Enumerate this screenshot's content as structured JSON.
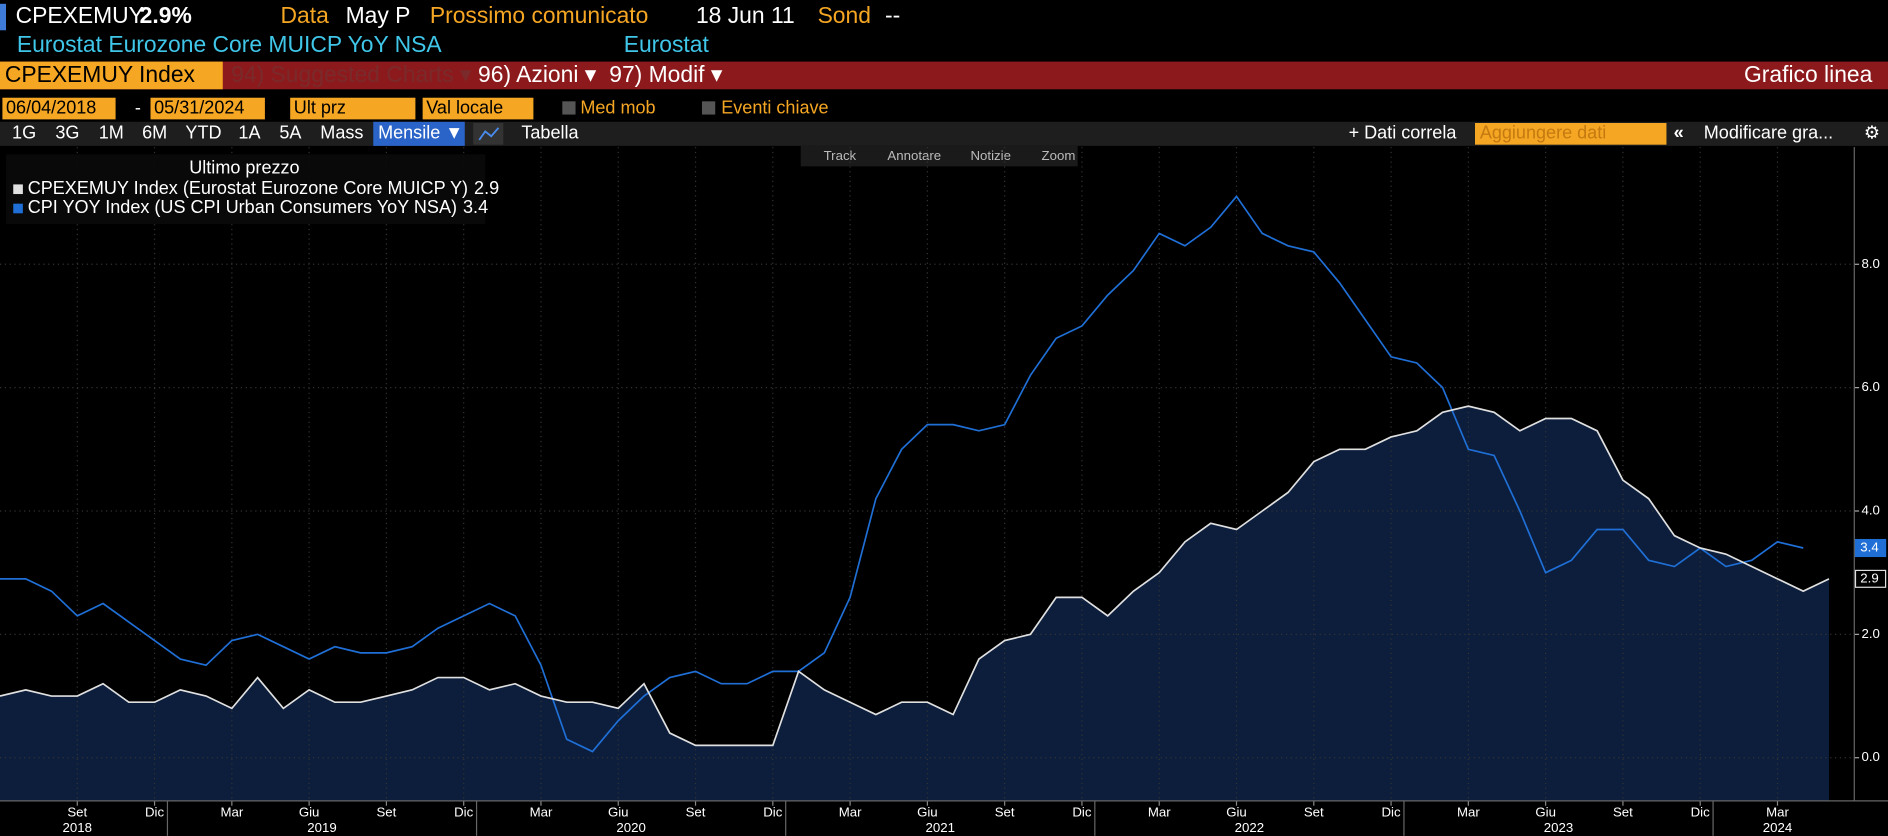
{
  "ui": {
    "header": {
      "ticker": "CPEXEMUY",
      "value": "2.9%",
      "data_label": "Data",
      "data_value": "May P",
      "next_label": "Prossimo comunicato",
      "next_value": "18 Jun 11",
      "survey_label": "Sond",
      "survey_value": "--",
      "description": "Eurostat Eurozone Core MUICP YoY NSA",
      "source": "Eurostat"
    },
    "menu": {
      "security": "CPEXEMUY Index",
      "items": [
        "94) Suggested Charts ▾",
        "96) Azioni ▾",
        "97) Modif ▾"
      ],
      "chart_type": "Grafico linea"
    },
    "controls": {
      "start": "06/04/2018",
      "separator": "-",
      "end": "05/31/2024",
      "field": "Ult prz",
      "currency": "Val locale",
      "moving_avg": "Med mob",
      "events": "Eventi chiave"
    },
    "periods": [
      "1G",
      "3G",
      "1M",
      "6M",
      "YTD",
      "1A",
      "5A",
      "Mass"
    ],
    "frequency": "Mensile ▼",
    "table": "Tabella",
    "related": "+ Dati correla",
    "add_data": "Aggiungere dati",
    "modify": "Modificare gra...",
    "tools": [
      "Track",
      "Annotare",
      "Notizie",
      "Zoom"
    ]
  },
  "chart_data": {
    "type": "line",
    "legend_title": "Ultimo prezzo",
    "grid": true,
    "x": [
      "2018-06",
      "2018-07",
      "2018-08",
      "2018-09",
      "2018-10",
      "2018-11",
      "2018-12",
      "2019-01",
      "2019-02",
      "2019-03",
      "2019-04",
      "2019-05",
      "2019-06",
      "2019-07",
      "2019-08",
      "2019-09",
      "2019-10",
      "2019-11",
      "2019-12",
      "2020-01",
      "2020-02",
      "2020-03",
      "2020-04",
      "2020-05",
      "2020-06",
      "2020-07",
      "2020-08",
      "2020-09",
      "2020-10",
      "2020-11",
      "2020-12",
      "2021-01",
      "2021-02",
      "2021-03",
      "2021-04",
      "2021-05",
      "2021-06",
      "2021-07",
      "2021-08",
      "2021-09",
      "2021-10",
      "2021-11",
      "2021-12",
      "2022-01",
      "2022-02",
      "2022-03",
      "2022-04",
      "2022-05",
      "2022-06",
      "2022-07",
      "2022-08",
      "2022-09",
      "2022-10",
      "2022-11",
      "2022-12",
      "2023-01",
      "2023-02",
      "2023-03",
      "2023-04",
      "2023-05",
      "2023-06",
      "2023-07",
      "2023-08",
      "2023-09",
      "2023-10",
      "2023-11",
      "2023-12",
      "2024-01",
      "2024-02",
      "2024-03",
      "2024-04",
      "2024-05"
    ],
    "series": [
      {
        "name": "CPEXEMUY Index (Eurostat Eurozone Core MUICP Y)",
        "color": "#e0e0e0",
        "fill": "#0c1e3c",
        "values": [
          1.0,
          1.1,
          1.0,
          1.0,
          1.2,
          0.9,
          0.9,
          1.1,
          1.0,
          0.8,
          1.3,
          0.8,
          1.1,
          0.9,
          0.9,
          1.0,
          1.1,
          1.3,
          1.3,
          1.1,
          1.2,
          1.0,
          0.9,
          0.9,
          0.8,
          1.2,
          0.4,
          0.2,
          0.2,
          0.2,
          0.2,
          1.4,
          1.1,
          0.9,
          0.7,
          0.9,
          0.9,
          0.7,
          1.6,
          1.9,
          2.0,
          2.6,
          2.6,
          2.3,
          2.7,
          3.0,
          3.5,
          3.8,
          3.7,
          4.0,
          4.3,
          4.8,
          5.0,
          5.0,
          5.2,
          5.3,
          5.6,
          5.7,
          5.6,
          5.3,
          5.5,
          5.5,
          5.3,
          4.5,
          4.2,
          3.6,
          3.4,
          3.3,
          3.1,
          2.9,
          2.7,
          2.9
        ]
      },
      {
        "name": "CPI YOY Index (US CPI Urban Consumers YoY NSA)",
        "color": "#1f6fd6",
        "values": [
          2.9,
          2.9,
          2.7,
          2.3,
          2.5,
          2.2,
          1.9,
          1.6,
          1.5,
          1.9,
          2.0,
          1.8,
          1.6,
          1.8,
          1.7,
          1.7,
          1.8,
          2.1,
          2.3,
          2.5,
          2.3,
          1.5,
          0.3,
          0.1,
          0.6,
          1.0,
          1.3,
          1.4,
          1.2,
          1.2,
          1.4,
          1.4,
          1.7,
          2.6,
          4.2,
          5.0,
          5.4,
          5.4,
          5.3,
          5.4,
          6.2,
          6.8,
          7.0,
          7.5,
          7.9,
          8.5,
          8.3,
          8.6,
          9.1,
          8.5,
          8.3,
          8.2,
          7.7,
          7.1,
          6.5,
          6.4,
          6.0,
          5.0,
          4.9,
          4.0,
          3.0,
          3.2,
          3.7,
          3.7,
          3.2,
          3.1,
          3.4,
          3.1,
          3.2,
          3.5,
          3.4,
          null
        ]
      }
    ],
    "ylim": [
      -0.7,
      9.9
    ],
    "yticks": [
      {
        "value": 0,
        "label": "0.0"
      },
      {
        "value": 2,
        "label": "2.0"
      },
      {
        "value": 4,
        "label": "4.0"
      },
      {
        "value": 6,
        "label": "6.0"
      },
      {
        "value": 8,
        "label": "8.0"
      }
    ],
    "xticks": [
      {
        "value": "2018-09",
        "label": "Set"
      },
      {
        "value": "2018-12",
        "label": "Dic"
      },
      {
        "value": "2019-03",
        "label": "Mar"
      },
      {
        "value": "2019-06",
        "label": "Giu"
      },
      {
        "value": "2019-09",
        "label": "Set"
      },
      {
        "value": "2019-12",
        "label": "Dic"
      },
      {
        "value": "2020-03",
        "label": "Mar"
      },
      {
        "value": "2020-06",
        "label": "Giu"
      },
      {
        "value": "2020-09",
        "label": "Set"
      },
      {
        "value": "2020-12",
        "label": "Dic"
      },
      {
        "value": "2021-03",
        "label": "Mar"
      },
      {
        "value": "2021-06",
        "label": "Giu"
      },
      {
        "value": "2021-09",
        "label": "Set"
      },
      {
        "value": "2021-12",
        "label": "Dic"
      },
      {
        "value": "2022-03",
        "label": "Mar"
      },
      {
        "value": "2022-06",
        "label": "Giu"
      },
      {
        "value": "2022-09",
        "label": "Set"
      },
      {
        "value": "2022-12",
        "label": "Dic"
      },
      {
        "value": "2023-03",
        "label": "Mar"
      },
      {
        "value": "2023-06",
        "label": "Giu"
      },
      {
        "value": "2023-09",
        "label": "Set"
      },
      {
        "value": "2023-12",
        "label": "Dic"
      },
      {
        "value": "2024-03",
        "label": "Mar"
      }
    ],
    "years": [
      2018,
      2019,
      2020,
      2021,
      2022,
      2023,
      2024
    ]
  }
}
